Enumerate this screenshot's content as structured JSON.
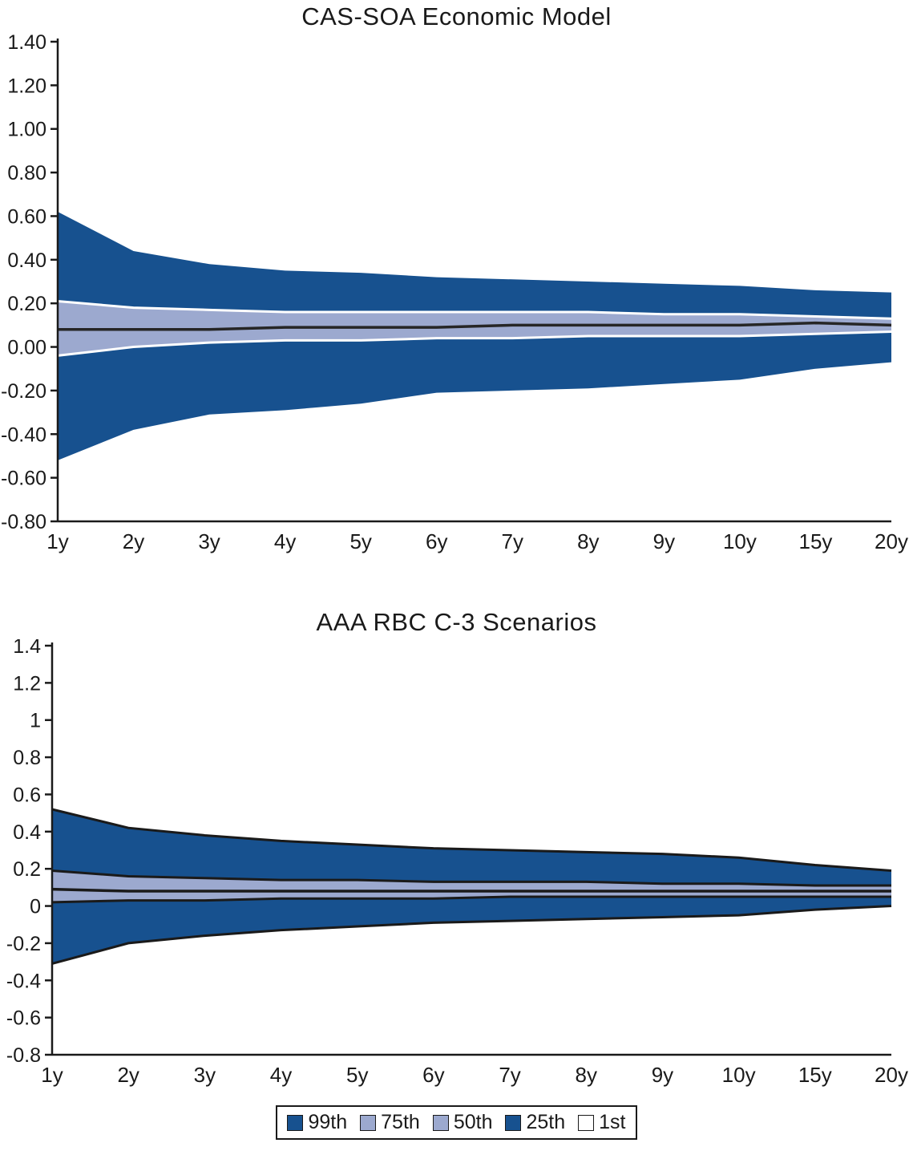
{
  "chart_data": [
    {
      "type": "area",
      "title": "CAS-SOA Economic Model",
      "categories": [
        "1y",
        "2y",
        "3y",
        "4y",
        "5y",
        "6y",
        "7y",
        "8y",
        "9y",
        "10y",
        "15y",
        "20y"
      ],
      "ylim": [
        -0.8,
        1.4
      ],
      "y_tick_values": [
        1.4,
        1.2,
        1.0,
        0.8,
        0.6,
        0.4,
        0.2,
        0.0,
        -0.2,
        -0.4,
        -0.6,
        -0.8
      ],
      "y_tick_labels": [
        "1.40",
        "1.20",
        "1.00",
        "0.80",
        "0.60",
        "0.40",
        "0.20",
        "0.00",
        "-0.20",
        "-0.40",
        "-0.60",
        "-0.80"
      ],
      "grid": "off",
      "legend_position": "none",
      "series": [
        {
          "name": "99th",
          "values": [
            0.62,
            0.44,
            0.38,
            0.35,
            0.34,
            0.32,
            0.31,
            0.3,
            0.29,
            0.28,
            0.26,
            0.25
          ]
        },
        {
          "name": "75th",
          "values": [
            0.21,
            0.18,
            0.17,
            0.16,
            0.16,
            0.16,
            0.16,
            0.16,
            0.15,
            0.15,
            0.14,
            0.13
          ]
        },
        {
          "name": "50th",
          "values": [
            0.08,
            0.08,
            0.08,
            0.09,
            0.09,
            0.09,
            0.1,
            0.1,
            0.1,
            0.1,
            0.11,
            0.1
          ]
        },
        {
          "name": "25th",
          "values": [
            -0.04,
            0.0,
            0.02,
            0.03,
            0.03,
            0.04,
            0.04,
            0.05,
            0.05,
            0.05,
            0.06,
            0.07
          ]
        },
        {
          "name": "1st",
          "values": [
            -0.52,
            -0.38,
            -0.31,
            -0.29,
            -0.26,
            -0.21,
            -0.2,
            -0.19,
            -0.17,
            -0.15,
            -0.1,
            -0.07
          ]
        }
      ],
      "colors": {
        "outer_band": "#17518F",
        "inner_band": "#9CA9CF",
        "outer_edge": "none",
        "inner_edge": "#FFFFFF",
        "median_line": "#262626",
        "axis": "#1A1A1A"
      }
    },
    {
      "type": "area",
      "title": "AAA RBC C-3 Scenarios",
      "categories": [
        "1y",
        "2y",
        "3y",
        "4y",
        "5y",
        "6y",
        "7y",
        "8y",
        "9y",
        "10y",
        "15y",
        "20y"
      ],
      "ylim": [
        -0.8,
        1.4
      ],
      "y_tick_values": [
        1.4,
        1.2,
        1.0,
        0.8,
        0.6,
        0.4,
        0.2,
        0.0,
        -0.2,
        -0.4,
        -0.6,
        -0.8
      ],
      "y_tick_labels": [
        "1.4",
        "1.2",
        "1",
        "0.8",
        "0.6",
        "0.4",
        "0.2",
        "0",
        "-0.2",
        "-0.4",
        "-0.6",
        "-0.8"
      ],
      "grid": "off",
      "legend_position": "bottom",
      "series": [
        {
          "name": "99th",
          "values": [
            0.52,
            0.42,
            0.38,
            0.35,
            0.33,
            0.31,
            0.3,
            0.29,
            0.28,
            0.26,
            0.22,
            0.19
          ]
        },
        {
          "name": "75th",
          "values": [
            0.19,
            0.16,
            0.15,
            0.14,
            0.14,
            0.13,
            0.13,
            0.13,
            0.12,
            0.12,
            0.11,
            0.11
          ]
        },
        {
          "name": "50th",
          "values": [
            0.09,
            0.08,
            0.08,
            0.08,
            0.08,
            0.08,
            0.08,
            0.08,
            0.08,
            0.08,
            0.08,
            0.08
          ]
        },
        {
          "name": "25th",
          "values": [
            0.02,
            0.03,
            0.03,
            0.04,
            0.04,
            0.04,
            0.05,
            0.05,
            0.05,
            0.05,
            0.05,
            0.05
          ]
        },
        {
          "name": "1st",
          "values": [
            -0.31,
            -0.2,
            -0.16,
            -0.13,
            -0.11,
            -0.09,
            -0.08,
            -0.07,
            -0.06,
            -0.05,
            -0.02,
            0.0
          ]
        }
      ],
      "colors": {
        "outer_band": "#17518F",
        "inner_band": "#9CA9CF",
        "outer_edge": "#1A1A1A",
        "inner_edge": "#1A1A1A",
        "median_line": "#1A1A1A",
        "axis": "#1A1A1A"
      }
    }
  ],
  "legend": {
    "items": [
      {
        "label": "99th",
        "color": "#17518F"
      },
      {
        "label": "75th",
        "color": "#9CA9CF"
      },
      {
        "label": "50th",
        "color": "#9CA9CF"
      },
      {
        "label": "25th",
        "color": "#17518F"
      },
      {
        "label": "1st",
        "color": "#FFFFFF"
      }
    ]
  }
}
